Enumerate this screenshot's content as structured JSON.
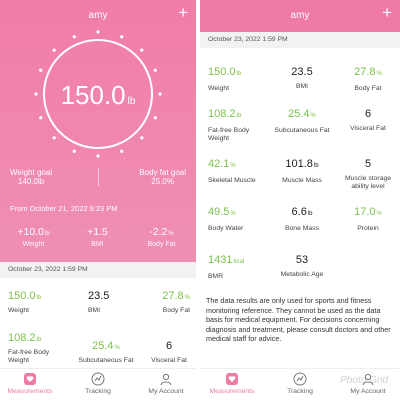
{
  "left": {
    "header_user": "amy",
    "weight_value": "150.0",
    "weight_unit": "lb",
    "weight_goal_label": "Weight goal",
    "weight_goal_value": "140.0lb",
    "fat_goal_label": "Body fat goal",
    "fat_goal_value": "25.0%",
    "from_text": "From October 21, 2022 9:23 PM",
    "changes": [
      {
        "value": "+10.0",
        "unit": "lb",
        "label": "Weight"
      },
      {
        "value": "+1.5",
        "unit": "",
        "label": "BMI"
      },
      {
        "value": "-2.2",
        "unit": "%",
        "label": "Body Fat"
      }
    ],
    "date_strip": "October 23, 2022 1:59 PM",
    "metrics": [
      {
        "value": "150.0",
        "unit": "lb",
        "label": "Weight",
        "color": "green"
      },
      {
        "value": "23.5",
        "unit": "",
        "label": "BMI",
        "color": "dark"
      },
      {
        "value": "27.8",
        "unit": "%",
        "label": "Body Fat",
        "color": "green"
      },
      {
        "value": "108.2",
        "unit": "lb",
        "label": "Fat-free Body Weight",
        "color": "green"
      },
      {
        "value": "25.4",
        "unit": "%",
        "label": "Subcutaneous Fat",
        "color": "green"
      },
      {
        "value": "6",
        "unit": "",
        "label": "Visceral Fat",
        "color": "dark"
      }
    ]
  },
  "right": {
    "header_user": "amy",
    "date_strip": "October 23, 2022 1:59 PM",
    "rows": [
      [
        {
          "value": "150.0",
          "unit": "lb",
          "label": "Weight",
          "color": "green"
        },
        {
          "value": "23.5",
          "unit": "",
          "label": "BMI",
          "color": "dark"
        },
        {
          "value": "27.8",
          "unit": "%",
          "label": "Body Fat",
          "color": "green"
        }
      ],
      [
        {
          "value": "108.2",
          "unit": "lb",
          "label": "Fat-free Body Weight",
          "color": "green"
        },
        {
          "value": "25.4",
          "unit": "%",
          "label": "Subcutaneous Fat",
          "color": "green"
        },
        {
          "value": "6",
          "unit": "",
          "label": "Visceral Fat",
          "color": "dark"
        }
      ],
      [
        {
          "value": "42.1",
          "unit": "%",
          "label": "Skeletal Muscle",
          "color": "green"
        },
        {
          "value": "101.8",
          "unit": "lb",
          "label": "Muscle Mass",
          "color": "dark"
        },
        {
          "value": "5",
          "unit": "",
          "label": "Muscle storage ability level",
          "color": "dark"
        }
      ],
      [
        {
          "value": "49.5",
          "unit": "%",
          "label": "Body Water",
          "color": "green"
        },
        {
          "value": "6.6",
          "unit": "lb",
          "label": "Bone Mass",
          "color": "dark"
        },
        {
          "value": "17.0",
          "unit": "%",
          "label": "Protein",
          "color": "green"
        }
      ],
      [
        {
          "value": "1431",
          "unit": "kcal",
          "label": "BMR",
          "color": "green"
        },
        {
          "value": "53",
          "unit": "",
          "label": "Metabolic Age",
          "color": "dark"
        }
      ]
    ],
    "disclaimer": "The data results are only used for sports and fitness monitoring reference. They cannot be used as the data basis for medical equipment. For decisions concerning diagnosis and treatment, please consult doctors and other medical staff for advice."
  },
  "tabs": [
    {
      "label": "Measurements",
      "icon": "heart-icon"
    },
    {
      "label": "Tracking",
      "icon": "tracking-icon"
    },
    {
      "label": "My Account",
      "icon": "account-icon"
    }
  ],
  "watermark": "Photo Grid",
  "colors": {
    "accent_pink": "#ef7aa6",
    "green": "#7cc24a",
    "dark": "#222222"
  }
}
